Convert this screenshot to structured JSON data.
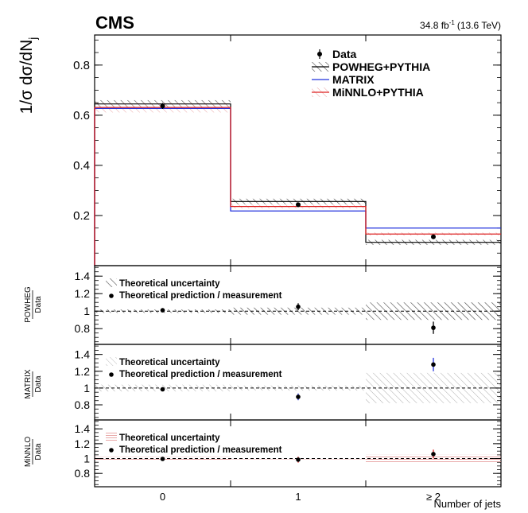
{
  "header": {
    "experiment": "CMS",
    "luminosity_main": "34.8 fb",
    "luminosity_exp": "-1",
    "luminosity_energy": "(13.6 TeV)"
  },
  "colors": {
    "data": "#000000",
    "powheg": "#000000",
    "matrix": "#2233dd",
    "minnlo": "#dd2222",
    "uncertainty_powheg": "#555555",
    "uncertainty_matrix": "#aaaaaa",
    "uncertainty_minnlo": "#e08a8a"
  },
  "chart_data": [
    {
      "type": "line",
      "panel": "main",
      "ylabel_main": "1/σ dσ/dN",
      "ylabel_sub": "j",
      "ylim": [
        0.0,
        0.92
      ],
      "yticks": [
        0.2,
        0.4,
        0.6,
        0.8
      ],
      "ytick_labels": [
        "0.2",
        "0.4",
        "0.6",
        "0.8"
      ],
      "categories": [
        "0",
        "1",
        "≥ 2"
      ],
      "legend": [
        "Data",
        "POWHEG+PYTHIA",
        "MATRIX",
        "MiNNLO+PYTHIA"
      ],
      "legend_position": "top-right",
      "data": {
        "name": "Data",
        "values": [
          0.637,
          0.243,
          0.115
        ],
        "errors": [
          0.012,
          0.009,
          0.007
        ]
      },
      "series": [
        {
          "name": "POWHEG+PYTHIA",
          "values": [
            0.645,
            0.256,
            0.093
          ],
          "uncertainty": [
            0.015,
            0.011,
            0.01
          ]
        },
        {
          "name": "MATRIX",
          "values": [
            0.627,
            0.218,
            0.15
          ],
          "uncertainty": [
            0.0,
            0.0,
            0.0
          ]
        },
        {
          "name": "MiNNLO+PYTHIA",
          "values": [
            0.631,
            0.236,
            0.126
          ],
          "uncertainty": [
            0.02,
            0.008,
            0.006
          ]
        }
      ]
    },
    {
      "type": "scatter",
      "panel": "ratio-powheg",
      "ylabel_top": "POWHEG",
      "ylabel_bottom": "Data",
      "ylim": [
        0.62,
        1.52
      ],
      "yticks": [
        0.8,
        1.0,
        1.2,
        1.4
      ],
      "ytick_labels": [
        "0.8",
        "1",
        "1.2",
        "1.4"
      ],
      "legend": [
        "Theoretical uncertainty",
        "Theoretical prediction / measurement"
      ],
      "values": [
        1.01,
        1.05,
        0.81
      ],
      "errors": [
        0.02,
        0.04,
        0.07
      ],
      "band": [
        0.02,
        0.04,
        0.1
      ]
    },
    {
      "type": "scatter",
      "panel": "ratio-matrix",
      "ylabel_top": "MATRIX",
      "ylabel_bottom": "Data",
      "ylim": [
        0.62,
        1.52
      ],
      "yticks": [
        0.8,
        1.0,
        1.2,
        1.4
      ],
      "ytick_labels": [
        "0.8",
        "1",
        "1.2",
        "1.4"
      ],
      "legend": [
        "Theoretical uncertainty",
        "Theoretical prediction / measurement"
      ],
      "values": [
        0.985,
        0.895,
        1.28
      ],
      "errors": [
        0.02,
        0.04,
        0.08
      ],
      "band": [
        0.04,
        0.03,
        0.18
      ]
    },
    {
      "type": "scatter",
      "panel": "ratio-minnlo",
      "ylabel_top": "MiNNLO",
      "ylabel_bottom": "Data",
      "ylim": [
        0.62,
        1.52
      ],
      "yticks": [
        0.8,
        1.0,
        1.2,
        1.4
      ],
      "ytick_labels": [
        "0.8",
        "1",
        "1.2",
        "1.4"
      ],
      "xlabel": "Number of jets",
      "xtick_labels": [
        "0",
        "1",
        "≥ 2"
      ],
      "legend": [
        "Theoretical uncertainty",
        "Theoretical prediction / measurement"
      ],
      "values": [
        0.995,
        0.985,
        1.06
      ],
      "errors": [
        0.02,
        0.04,
        0.06
      ],
      "band": [
        0.02,
        0.01,
        0.05
      ]
    }
  ]
}
